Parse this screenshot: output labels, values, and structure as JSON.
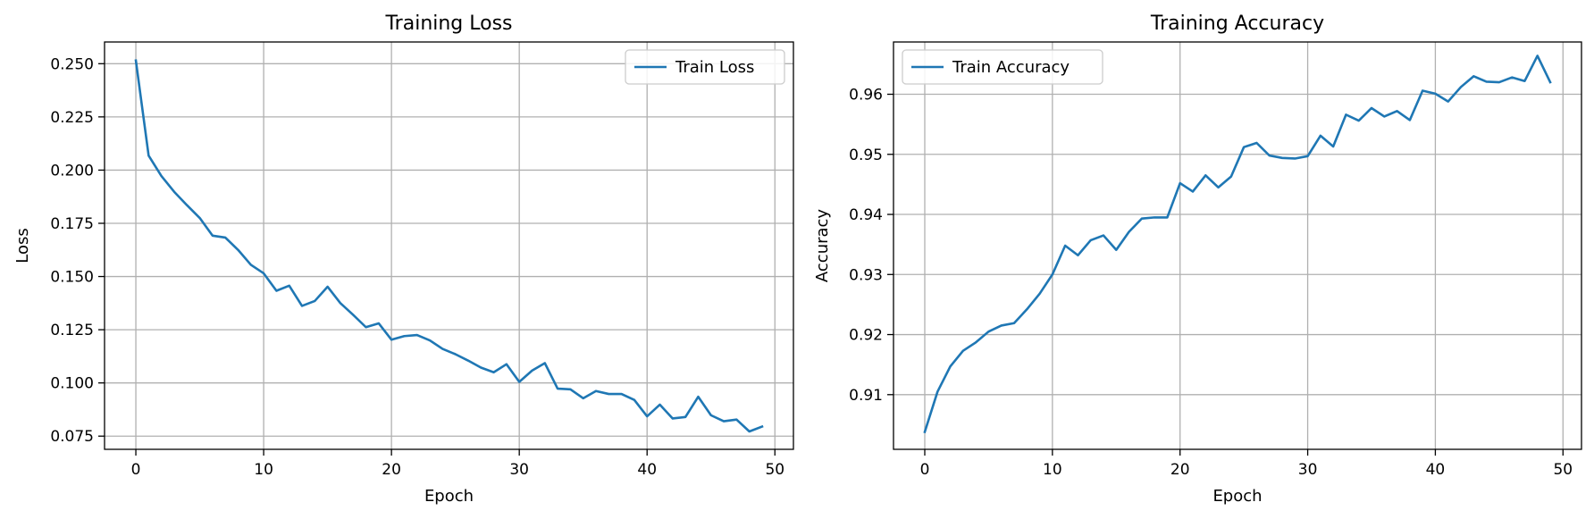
{
  "chart_data": [
    {
      "type": "line",
      "title": "Training Loss",
      "xlabel": "Epoch",
      "ylabel": "Loss",
      "xlim": [
        -2.45,
        51.45
      ],
      "ylim": [
        0.0688,
        0.2602
      ],
      "xticks": [
        0,
        10,
        20,
        30,
        40,
        50
      ],
      "yticks": [
        0.075,
        0.1,
        0.125,
        0.15,
        0.175,
        0.2,
        0.225,
        0.25
      ],
      "ytick_labels": [
        "0.075",
        "0.100",
        "0.125",
        "0.150",
        "0.175",
        "0.200",
        "0.225",
        "0.250"
      ],
      "grid": true,
      "legend": "top-right",
      "color": "#1f77b4",
      "series": [
        {
          "name": "Train Loss",
          "x": [
            0,
            1,
            2,
            3,
            4,
            5,
            6,
            7,
            8,
            9,
            10,
            11,
            12,
            13,
            14,
            15,
            16,
            17,
            18,
            19,
            20,
            21,
            22,
            23,
            24,
            25,
            26,
            27,
            28,
            29,
            30,
            31,
            32,
            33,
            34,
            35,
            36,
            37,
            38,
            39,
            40,
            41,
            42,
            43,
            44,
            45,
            46,
            47,
            48,
            49
          ],
          "y": [
            0.2515,
            0.2068,
            0.1972,
            0.1898,
            0.1835,
            0.1775,
            0.1692,
            0.1683,
            0.1625,
            0.1555,
            0.1515,
            0.1433,
            0.1457,
            0.1362,
            0.1385,
            0.1452,
            0.1375,
            0.132,
            0.1262,
            0.128,
            0.1203,
            0.122,
            0.1225,
            0.12,
            0.116,
            0.1135,
            0.1105,
            0.1072,
            0.105,
            0.1088,
            0.1005,
            0.1058,
            0.1093,
            0.0973,
            0.097,
            0.0928,
            0.0962,
            0.0948,
            0.0948,
            0.092,
            0.0843,
            0.0898,
            0.0833,
            0.084,
            0.0935,
            0.0848,
            0.082,
            0.0828,
            0.0772,
            0.0795
          ]
        }
      ]
    },
    {
      "type": "line",
      "title": "Training Accuracy",
      "xlabel": "Epoch",
      "ylabel": "Accuracy",
      "xlim": [
        -2.45,
        51.45
      ],
      "ylim": [
        0.9009,
        0.9687
      ],
      "xticks": [
        0,
        10,
        20,
        30,
        40,
        50
      ],
      "yticks": [
        0.91,
        0.92,
        0.93,
        0.94,
        0.95,
        0.96
      ],
      "ytick_labels": [
        "0.91",
        "0.92",
        "0.93",
        "0.94",
        "0.95",
        "0.96"
      ],
      "grid": true,
      "legend": "top-left",
      "color": "#1f77b4",
      "series": [
        {
          "name": "Train Accuracy",
          "x": [
            0,
            1,
            2,
            3,
            4,
            5,
            6,
            7,
            8,
            9,
            10,
            11,
            12,
            13,
            14,
            15,
            16,
            17,
            18,
            19,
            20,
            21,
            22,
            23,
            24,
            25,
            26,
            27,
            28,
            29,
            30,
            31,
            32,
            33,
            34,
            35,
            36,
            37,
            38,
            39,
            40,
            41,
            42,
            43,
            44,
            45,
            46,
            47,
            48,
            49
          ],
          "y": [
            0.9038,
            0.9105,
            0.9147,
            0.9173,
            0.9187,
            0.9205,
            0.9215,
            0.9219,
            0.9242,
            0.9268,
            0.93,
            0.9348,
            0.9332,
            0.9357,
            0.9365,
            0.9341,
            0.9371,
            0.9393,
            0.9395,
            0.9395,
            0.9452,
            0.9438,
            0.9465,
            0.9445,
            0.9463,
            0.9512,
            0.9519,
            0.9498,
            0.9494,
            0.9493,
            0.9497,
            0.9531,
            0.9513,
            0.9566,
            0.9556,
            0.9577,
            0.9563,
            0.9572,
            0.9557,
            0.9606,
            0.9601,
            0.9588,
            0.9612,
            0.963,
            0.9621,
            0.962,
            0.9628,
            0.9622,
            0.9664,
            0.962
          ]
        }
      ]
    }
  ]
}
